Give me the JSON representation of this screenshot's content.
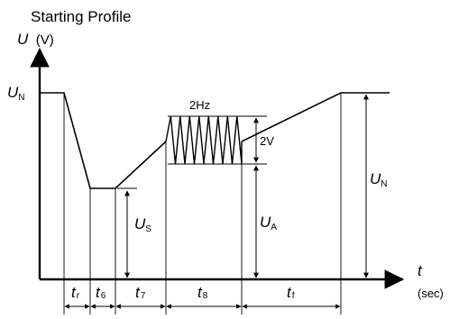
{
  "title": "Starting Profile",
  "axes": {
    "y_symbol": "U",
    "y_unit": "(V)",
    "x_symbol": "t",
    "x_unit": "(sec)"
  },
  "levels": {
    "un_left": {
      "symbol": "U",
      "sub": "N"
    },
    "us": {
      "symbol": "U",
      "sub": "S"
    },
    "ua": {
      "symbol": "U",
      "sub": "A"
    },
    "un_right": {
      "symbol": "U",
      "sub": "N"
    }
  },
  "oscillation": {
    "frequency_label": "2Hz",
    "amplitude_label": "2V"
  },
  "intervals": [
    {
      "symbol": "t",
      "sub": "r"
    },
    {
      "symbol": "t",
      "sub": "6"
    },
    {
      "symbol": "t",
      "sub": "7"
    },
    {
      "symbol": "t",
      "sub": "8"
    },
    {
      "symbol": "t",
      "sub": "f"
    }
  ]
}
